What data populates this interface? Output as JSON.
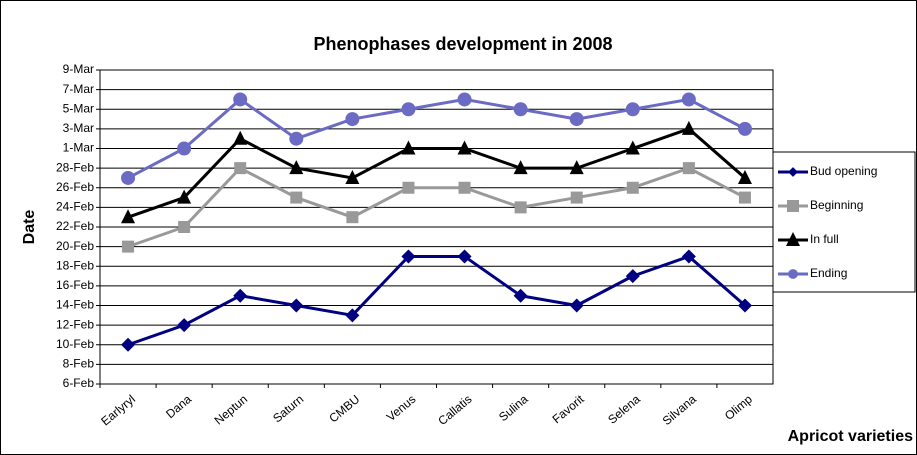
{
  "chart_data": {
    "type": "line",
    "title": "Phenophases development in 2008",
    "x_label": "Apricot varieties",
    "y_label": "Date",
    "categories": [
      "Earlyryl",
      "Dana",
      "Neptun",
      "Saturn",
      "CMBU",
      "Venus",
      "Callatis",
      "Sulina",
      "Favorit",
      "Selena",
      "Silvana",
      "Olimp"
    ],
    "series": [
      {
        "name": "Bud opening",
        "color": "#000080",
        "marker": "diamond",
        "values": [
          41,
          43,
          46,
          45,
          44,
          50,
          50,
          46,
          45,
          48,
          50,
          45
        ]
      },
      {
        "name": "Beginning",
        "color": "#999999",
        "marker": "square",
        "values": [
          51,
          53,
          59,
          56,
          54,
          57,
          57,
          55,
          56,
          57,
          59,
          56
        ]
      },
      {
        "name": "In full",
        "color": "#000000",
        "marker": "triangle",
        "values": [
          54,
          56,
          62,
          59,
          58,
          61,
          61,
          59,
          59,
          61,
          63,
          58
        ]
      },
      {
        "name": "Ending",
        "color": "#6b6bc4",
        "marker": "circle",
        "values": [
          58,
          61,
          66,
          62,
          64,
          65,
          66,
          65,
          64,
          65,
          66,
          63
        ]
      }
    ],
    "ylim": [
      37,
      69
    ],
    "yticks": [
      {
        "value": 37,
        "label": "6-Feb"
      },
      {
        "value": 39,
        "label": "8-Feb"
      },
      {
        "value": 41,
        "label": "10-Feb"
      },
      {
        "value": 43,
        "label": "12-Feb"
      },
      {
        "value": 45,
        "label": "14-Feb"
      },
      {
        "value": 47,
        "label": "16-Feb"
      },
      {
        "value": 49,
        "label": "18-Feb"
      },
      {
        "value": 51,
        "label": "20-Feb"
      },
      {
        "value": 53,
        "label": "22-Feb"
      },
      {
        "value": 55,
        "label": "24-Feb"
      },
      {
        "value": 57,
        "label": "26-Feb"
      },
      {
        "value": 59,
        "label": "28-Feb"
      },
      {
        "value": 61,
        "label": "1-Mar"
      },
      {
        "value": 63,
        "label": "3-Mar"
      },
      {
        "value": 65,
        "label": "5-Mar"
      },
      {
        "value": 67,
        "label": "7-Mar"
      },
      {
        "value": 69,
        "label": "9-Mar"
      }
    ],
    "grid": true,
    "legend": "right"
  }
}
